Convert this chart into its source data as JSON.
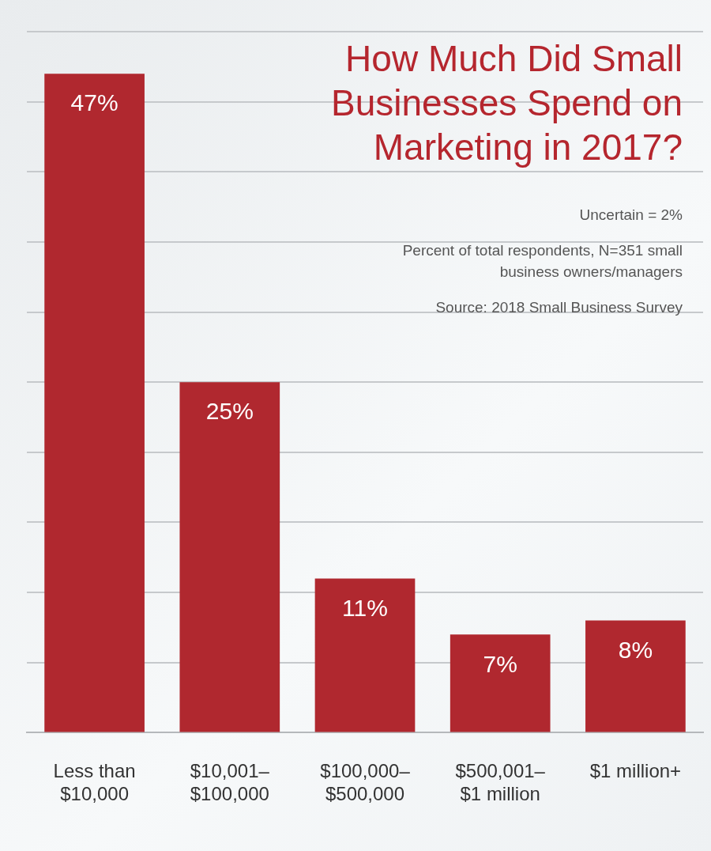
{
  "chart_data": {
    "type": "bar",
    "title": "How Much Did Small Businesses Spend on Marketing in 2017?",
    "categories": [
      "Less than $10,000",
      "$10,001–$100,000",
      "$100,000–$500,000",
      "$500,001–$1 million",
      "$1 million+"
    ],
    "values": [
      47,
      25,
      11,
      7,
      8
    ],
    "color": "#b0282f",
    "value_labels": [
      "47%",
      "25%",
      "11%",
      "7%",
      "8%"
    ],
    "tick_labels": "x",
    "grid": "y",
    "annotations": [
      "Uncertain = 2%",
      "Percent of total respondents, N=351 small business owners/managers",
      "Source: 2018 Small Business Survey"
    ]
  }
}
